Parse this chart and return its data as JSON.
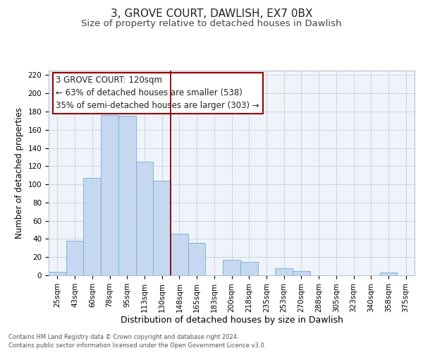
{
  "title": "3, GROVE COURT, DAWLISH, EX7 0BX",
  "subtitle": "Size of property relative to detached houses in Dawlish",
  "xlabel": "Distribution of detached houses by size in Dawlish",
  "ylabel": "Number of detached properties",
  "footnote1": "Contains HM Land Registry data © Crown copyright and database right 2024.",
  "footnote2": "Contains public sector information licensed under the Open Government Licence v3.0.",
  "bar_labels": [
    "25sqm",
    "43sqm",
    "60sqm",
    "78sqm",
    "95sqm",
    "113sqm",
    "130sqm",
    "148sqm",
    "165sqm",
    "183sqm",
    "200sqm",
    "218sqm",
    "235sqm",
    "253sqm",
    "270sqm",
    "288sqm",
    "305sqm",
    "323sqm",
    "340sqm",
    "358sqm",
    "375sqm"
  ],
  "bar_values": [
    4,
    38,
    107,
    176,
    175,
    125,
    104,
    46,
    36,
    0,
    17,
    15,
    0,
    8,
    5,
    0,
    0,
    0,
    0,
    3,
    0
  ],
  "bar_color": "#c5d8f0",
  "bar_edge_color": "#6aaed6",
  "vline_color": "#8b0000",
  "annotation_title": "3 GROVE COURT: 120sqm",
  "annotation_line1": "← 63% of detached houses are smaller (538)",
  "annotation_line2": "35% of semi-detached houses are larger (303) →",
  "annotation_box_color": "#ffffff",
  "annotation_box_edge": "#990000",
  "ylim": [
    0,
    225
  ],
  "yticks": [
    0,
    20,
    40,
    60,
    80,
    100,
    120,
    140,
    160,
    180,
    200,
    220
  ],
  "title_fontsize": 11,
  "subtitle_fontsize": 9.5,
  "xlabel_fontsize": 9,
  "ylabel_fontsize": 8.5,
  "tick_fontsize": 7.5,
  "annotation_fontsize": 8.5,
  "footnote_fontsize": 6
}
